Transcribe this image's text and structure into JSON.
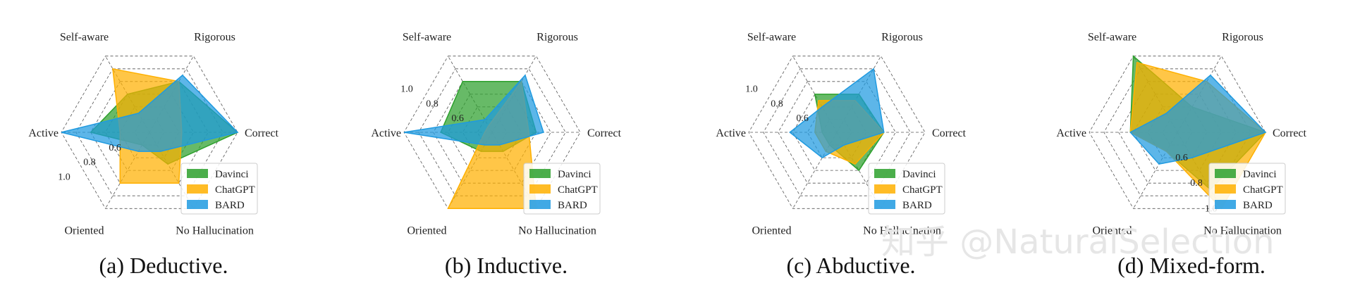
{
  "watermark": "知乎 @NaturalSelection",
  "chart_data": [
    {
      "type": "radar",
      "caption": "(a) Deductive.",
      "axes": [
        "Self-aware",
        "Rigorous",
        "Correct",
        "No Hallucination",
        "Oriented",
        "Active"
      ],
      "rlim": [
        0.4,
        1.0
      ],
      "rticks": [
        "0.6",
        "0.8",
        "1.0"
      ],
      "tick_side": "left-lower",
      "legend": [
        "Davinci",
        "ChatGPT",
        "BARD"
      ],
      "series": [
        {
          "name": "Davinci",
          "color": "#2ca02c",
          "values": [
            0.7,
            0.8,
            1.0,
            0.65,
            0.5,
            0.8
          ]
        },
        {
          "name": "ChatGPT",
          "color": "#ffb000",
          "values": [
            0.9,
            0.8,
            0.62,
            0.8,
            0.8,
            0.6
          ]
        },
        {
          "name": "BARD",
          "color": "#1f9ae0",
          "values": [
            0.55,
            0.85,
            1.0,
            0.55,
            0.55,
            1.0
          ]
        }
      ]
    },
    {
      "type": "radar",
      "caption": "(b) Inductive.",
      "axes": [
        "Self-aware",
        "Rigorous",
        "Correct",
        "No Hallucination",
        "Oriented",
        "Active"
      ],
      "rlim": [
        0.4,
        1.0
      ],
      "rticks": [
        "0.6",
        "0.8",
        "1.0"
      ],
      "tick_side": "left-upper",
      "legend": [
        "Davinci",
        "ChatGPT",
        "BARD"
      ],
      "series": [
        {
          "name": "Davinci",
          "color": "#2ca02c",
          "values": [
            0.8,
            0.8,
            0.7,
            0.55,
            0.55,
            0.75
          ]
        },
        {
          "name": "ChatGPT",
          "color": "#ffb000",
          "values": [
            0.45,
            0.8,
            0.65,
            1.0,
            1.0,
            0.45
          ]
        },
        {
          "name": "BARD",
          "color": "#1f9ae0",
          "values": [
            0.5,
            0.85,
            0.75,
            0.5,
            0.5,
            1.0
          ]
        }
      ]
    },
    {
      "type": "radar",
      "caption": "(c) Abductive.",
      "axes": [
        "Self-aware",
        "Rigorous",
        "Correct",
        "No Hallucination",
        "Oriented",
        "Active"
      ],
      "rlim": [
        0.4,
        1.0
      ],
      "rticks": [
        "0.6",
        "0.8",
        "1.0"
      ],
      "tick_side": "left-upper",
      "legend": [
        "Davinci",
        "ChatGPT",
        "BARD"
      ],
      "series": [
        {
          "name": "Davinci",
          "color": "#2ca02c",
          "values": [
            0.7,
            0.7,
            0.72,
            0.7,
            0.5,
            0.5
          ]
        },
        {
          "name": "ChatGPT",
          "color": "#ffb000",
          "values": [
            0.65,
            0.65,
            0.72,
            0.65,
            0.55,
            0.55
          ]
        },
        {
          "name": "BARD",
          "color": "#1f9ae0",
          "values": [
            0.6,
            0.9,
            0.72,
            0.5,
            0.6,
            0.72
          ]
        }
      ]
    },
    {
      "type": "radar",
      "caption": "(d) Mixed-form.",
      "axes": [
        "Self-aware",
        "Rigorous",
        "Correct",
        "No Hallucination",
        "Oriented",
        "Active"
      ],
      "rlim": [
        0.4,
        1.0
      ],
      "rticks": [
        "0.6",
        "0.8",
        "1.0"
      ],
      "tick_side": "right-lower",
      "legend": [
        "Davinci",
        "ChatGPT",
        "BARD"
      ],
      "series": [
        {
          "name": "Davinci",
          "color": "#2ca02c",
          "values": [
            1.0,
            0.6,
            1.0,
            0.85,
            0.55,
            0.72
          ]
        },
        {
          "name": "ChatGPT",
          "color": "#ffb000",
          "values": [
            0.95,
            0.8,
            1.0,
            1.0,
            0.55,
            0.72
          ]
        },
        {
          "name": "BARD",
          "color": "#1f9ae0",
          "values": [
            0.55,
            0.85,
            1.0,
            0.6,
            0.65,
            0.72
          ]
        }
      ]
    }
  ]
}
